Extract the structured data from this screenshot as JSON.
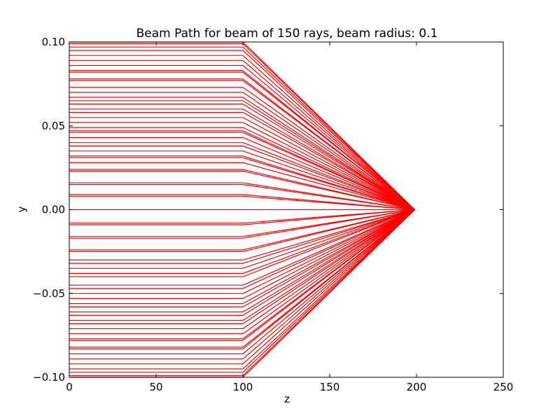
{
  "chart_data": {
    "type": "line",
    "title": "Beam Path for beam of 150 rays, beam radius: 0.1",
    "xlabel": "z",
    "ylabel": "y",
    "xlim": [
      0,
      250
    ],
    "ylim": [
      -0.1,
      0.1
    ],
    "xticks": [
      0,
      50,
      100,
      150,
      200,
      250
    ],
    "xtick_labels": [
      "0",
      "50",
      "100",
      "150",
      "200",
      "250"
    ],
    "yticks": [
      0.1,
      0.05,
      0.0,
      -0.05,
      -0.1
    ],
    "ytick_labels": [
      "0.10",
      "0.05",
      "0.00",
      "−0.05",
      "−0.10"
    ],
    "grid": false,
    "line_color": "#ff0000",
    "ray_path_z": [
      0,
      100,
      105,
      199
    ],
    "focus": [
      199,
      0.0
    ],
    "ray_heights": [
      0.1,
      0.099,
      0.097,
      0.095,
      0.092,
      0.089,
      0.086,
      0.083,
      0.082,
      0.078,
      0.077,
      0.073,
      0.07,
      0.067,
      0.065,
      0.063,
      0.06,
      0.058,
      0.055,
      0.052,
      0.049,
      0.047,
      0.046,
      0.043,
      0.04,
      0.038,
      0.035,
      0.032,
      0.031,
      0.028,
      0.024,
      0.023,
      0.016,
      0.015,
      0.009,
      0.008,
      0.0,
      -0.008,
      -0.009,
      -0.016,
      -0.017,
      -0.024,
      -0.025,
      -0.03,
      -0.032,
      -0.035,
      -0.038,
      -0.04,
      -0.045,
      -0.047,
      -0.05,
      -0.053,
      -0.056,
      -0.058,
      -0.061,
      -0.063,
      -0.066,
      -0.068,
      -0.071,
      -0.074,
      -0.077,
      -0.078,
      -0.082,
      -0.083,
      -0.086,
      -0.089,
      -0.092,
      -0.095,
      -0.097,
      -0.099,
      -0.1
    ]
  }
}
